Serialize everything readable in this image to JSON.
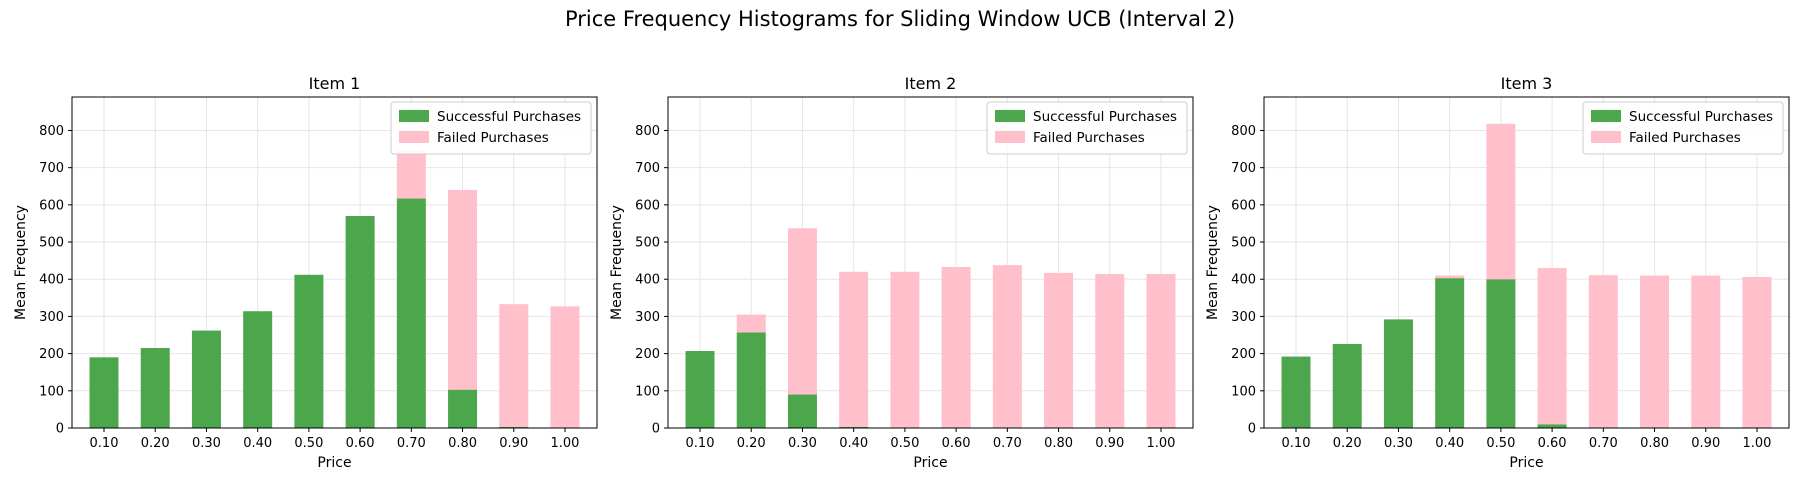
{
  "figure": {
    "title": "Price Frequency Histograms for Sliding Window UCB (Interval 2)"
  },
  "colors": {
    "success": "#4ca64c",
    "failed": "#ffc0cb",
    "grid": "#e6e6e6",
    "axis": "#000000"
  },
  "chart_data": [
    {
      "type": "bar",
      "stacked": true,
      "title": "Item 1",
      "xlabel": "Price",
      "ylabel": "Mean Frequency",
      "categories": [
        "0.10",
        "0.20",
        "0.30",
        "0.40",
        "0.50",
        "0.60",
        "0.70",
        "0.80",
        "0.90",
        "1.00"
      ],
      "ylim": [
        0,
        890
      ],
      "yticks": [
        0,
        100,
        200,
        300,
        400,
        500,
        600,
        700,
        800
      ],
      "grid": true,
      "legend_position": "top-right",
      "series": [
        {
          "name": "Successful Purchases",
          "values": [
            190,
            215,
            262,
            314,
            412,
            570,
            617,
            103,
            3,
            0
          ]
        },
        {
          "name": "Failed Purchases",
          "values": [
            0,
            0,
            0,
            0,
            0,
            0,
            128,
            537,
            330,
            327
          ]
        }
      ]
    },
    {
      "type": "bar",
      "stacked": true,
      "title": "Item 2",
      "xlabel": "Price",
      "ylabel": "Mean Frequency",
      "categories": [
        "0.10",
        "0.20",
        "0.30",
        "0.40",
        "0.50",
        "0.60",
        "0.70",
        "0.80",
        "0.90",
        "1.00"
      ],
      "ylim": [
        0,
        890
      ],
      "yticks": [
        0,
        100,
        200,
        300,
        400,
        500,
        600,
        700,
        800
      ],
      "grid": true,
      "legend_position": "top-right",
      "series": [
        {
          "name": "Successful Purchases",
          "values": [
            207,
            257,
            90,
            3,
            0,
            0,
            0,
            0,
            0,
            0
          ]
        },
        {
          "name": "Failed Purchases",
          "values": [
            0,
            48,
            447,
            417,
            420,
            433,
            438,
            417,
            414,
            414
          ]
        }
      ]
    },
    {
      "type": "bar",
      "stacked": true,
      "title": "Item 3",
      "xlabel": "Price",
      "ylabel": "Mean Frequency",
      "categories": [
        "0.10",
        "0.20",
        "0.30",
        "0.40",
        "0.50",
        "0.60",
        "0.70",
        "0.80",
        "0.90",
        "1.00"
      ],
      "ylim": [
        0,
        890
      ],
      "yticks": [
        0,
        100,
        200,
        300,
        400,
        500,
        600,
        700,
        800
      ],
      "grid": true,
      "legend_position": "top-right",
      "series": [
        {
          "name": "Successful Purchases",
          "values": [
            192,
            226,
            292,
            403,
            400,
            10,
            0,
            0,
            0,
            0
          ]
        },
        {
          "name": "Failed Purchases",
          "values": [
            0,
            0,
            0,
            7,
            418,
            420,
            411,
            410,
            410,
            406
          ]
        }
      ]
    }
  ]
}
